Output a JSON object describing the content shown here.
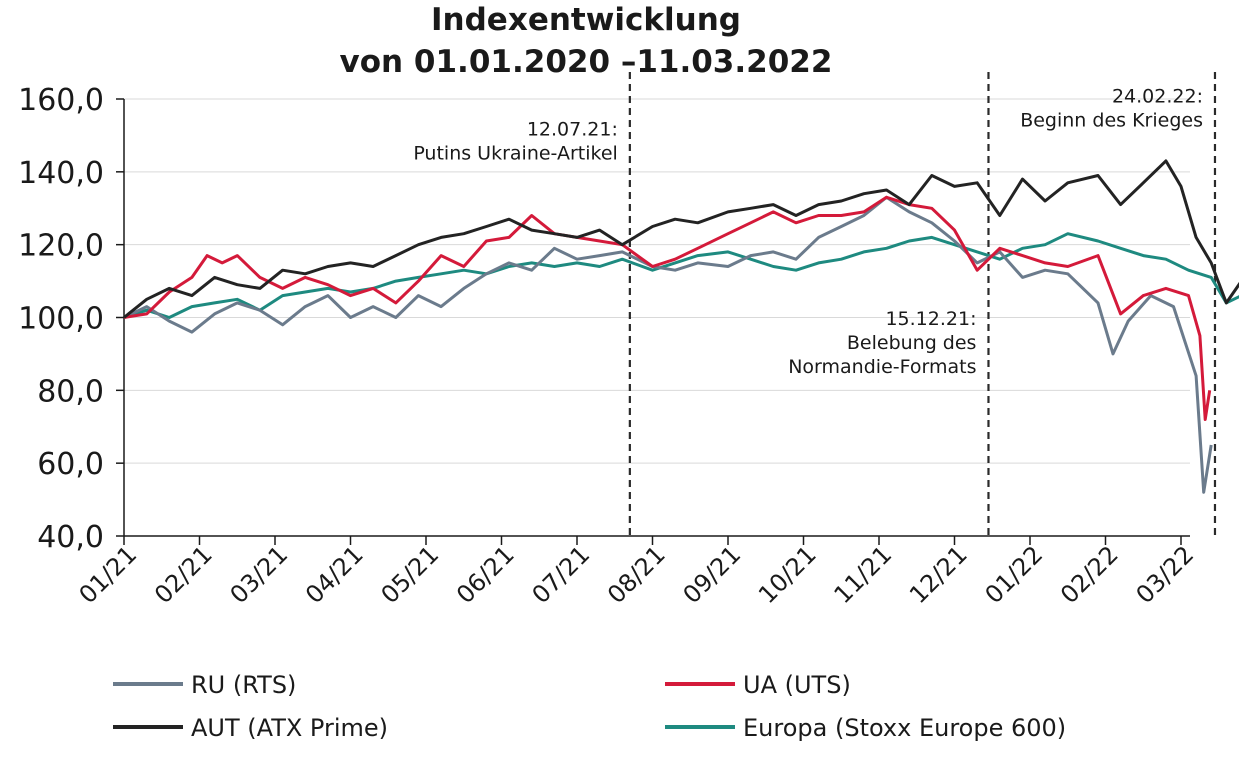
{
  "chart_data": {
    "type": "line",
    "title": "Indexentwicklung",
    "subtitle": "von 01.01.2020 –11.03.2022",
    "ylim": [
      40,
      160
    ],
    "yticks": [
      "160,0",
      "140,0",
      "120,0",
      "100,0",
      "80,0",
      "60,0",
      "40,0"
    ],
    "yvalues": [
      160,
      140,
      120,
      100,
      80,
      60,
      40
    ],
    "xticks": [
      "01/21",
      "02/21",
      "03/21",
      "04/21",
      "05/21",
      "06/21",
      "07/21",
      "08/21",
      "09/21",
      "10/21",
      "11/21",
      "12/21",
      "01/22",
      "02/22",
      "03/22"
    ],
    "grid": true,
    "legend": "bottom",
    "series": [
      {
        "name": "RU (RTS)",
        "color": "#6b7b8c",
        "values": [
          [
            0,
            100
          ],
          [
            0.3,
            103
          ],
          [
            0.6,
            99
          ],
          [
            0.9,
            96
          ],
          [
            1.2,
            101
          ],
          [
            1.5,
            104
          ],
          [
            1.8,
            102
          ],
          [
            2.1,
            98
          ],
          [
            2.4,
            103
          ],
          [
            2.7,
            106
          ],
          [
            3.0,
            100
          ],
          [
            3.3,
            103
          ],
          [
            3.6,
            100
          ],
          [
            3.9,
            106
          ],
          [
            4.2,
            103
          ],
          [
            4.5,
            108
          ],
          [
            4.8,
            112
          ],
          [
            5.1,
            115
          ],
          [
            5.4,
            113
          ],
          [
            5.7,
            119
          ],
          [
            6.0,
            116
          ],
          [
            6.3,
            117
          ],
          [
            6.6,
            118
          ],
          [
            7.0,
            114
          ],
          [
            7.3,
            113
          ],
          [
            7.6,
            115
          ],
          [
            8.0,
            114
          ],
          [
            8.3,
            117
          ],
          [
            8.6,
            118
          ],
          [
            8.9,
            116
          ],
          [
            9.2,
            122
          ],
          [
            9.5,
            125
          ],
          [
            9.8,
            128
          ],
          [
            10.1,
            133
          ],
          [
            10.4,
            129
          ],
          [
            10.7,
            126
          ],
          [
            11.0,
            121
          ],
          [
            11.3,
            115
          ],
          [
            11.6,
            118
          ],
          [
            11.9,
            111
          ],
          [
            12.2,
            113
          ],
          [
            12.5,
            112
          ],
          [
            12.9,
            104
          ],
          [
            13.1,
            90
          ],
          [
            13.3,
            99
          ],
          [
            13.6,
            106
          ],
          [
            13.9,
            103
          ],
          [
            14.2,
            84
          ],
          [
            14.3,
            52
          ],
          [
            14.4,
            65
          ]
        ]
      },
      {
        "name": "UA (UTS)",
        "color": "#d41a3a",
        "values": [
          [
            0,
            100
          ],
          [
            0.3,
            101
          ],
          [
            0.6,
            107
          ],
          [
            0.9,
            111
          ],
          [
            1.1,
            117
          ],
          [
            1.3,
            115
          ],
          [
            1.5,
            117
          ],
          [
            1.8,
            111
          ],
          [
            2.1,
            108
          ],
          [
            2.4,
            111
          ],
          [
            2.7,
            109
          ],
          [
            3.0,
            106
          ],
          [
            3.3,
            108
          ],
          [
            3.6,
            104
          ],
          [
            3.9,
            110
          ],
          [
            4.2,
            117
          ],
          [
            4.5,
            114
          ],
          [
            4.8,
            121
          ],
          [
            5.1,
            122
          ],
          [
            5.4,
            128
          ],
          [
            5.7,
            123
          ],
          [
            6.0,
            122
          ],
          [
            6.3,
            121
          ],
          [
            6.6,
            120
          ],
          [
            7.0,
            114
          ],
          [
            7.3,
            116
          ],
          [
            7.6,
            119
          ],
          [
            8.0,
            123
          ],
          [
            8.3,
            126
          ],
          [
            8.6,
            129
          ],
          [
            8.9,
            126
          ],
          [
            9.2,
            128
          ],
          [
            9.5,
            128
          ],
          [
            9.8,
            129
          ],
          [
            10.1,
            133
          ],
          [
            10.4,
            131
          ],
          [
            10.7,
            130
          ],
          [
            11.0,
            124
          ],
          [
            11.3,
            113
          ],
          [
            11.6,
            119
          ],
          [
            11.9,
            117
          ],
          [
            12.2,
            115
          ],
          [
            12.5,
            114
          ],
          [
            12.9,
            117
          ],
          [
            13.2,
            101
          ],
          [
            13.5,
            106
          ],
          [
            13.8,
            108
          ],
          [
            14.1,
            106
          ],
          [
            14.25,
            95
          ],
          [
            14.32,
            72
          ],
          [
            14.38,
            80
          ]
        ]
      },
      {
        "name": "AUT (ATX Prime)",
        "color": "#232323",
        "values": [
          [
            0,
            100
          ],
          [
            0.3,
            105
          ],
          [
            0.6,
            108
          ],
          [
            0.9,
            106
          ],
          [
            1.2,
            111
          ],
          [
            1.5,
            109
          ],
          [
            1.8,
            108
          ],
          [
            2.1,
            113
          ],
          [
            2.4,
            112
          ],
          [
            2.7,
            114
          ],
          [
            3.0,
            115
          ],
          [
            3.3,
            114
          ],
          [
            3.6,
            117
          ],
          [
            3.9,
            120
          ],
          [
            4.2,
            122
          ],
          [
            4.5,
            123
          ],
          [
            4.8,
            125
          ],
          [
            5.1,
            127
          ],
          [
            5.4,
            124
          ],
          [
            5.7,
            123
          ],
          [
            6.0,
            122
          ],
          [
            6.3,
            124
          ],
          [
            6.6,
            120
          ],
          [
            7.0,
            125
          ],
          [
            7.3,
            127
          ],
          [
            7.6,
            126
          ],
          [
            8.0,
            129
          ],
          [
            8.3,
            130
          ],
          [
            8.6,
            131
          ],
          [
            8.9,
            128
          ],
          [
            9.2,
            131
          ],
          [
            9.5,
            132
          ],
          [
            9.8,
            134
          ],
          [
            10.1,
            135
          ],
          [
            10.4,
            131
          ],
          [
            10.7,
            139
          ],
          [
            11.0,
            136
          ],
          [
            11.3,
            137
          ],
          [
            11.6,
            128
          ],
          [
            11.9,
            138
          ],
          [
            12.2,
            132
          ],
          [
            12.5,
            137
          ],
          [
            12.9,
            139
          ],
          [
            13.2,
            131
          ],
          [
            13.5,
            137
          ],
          [
            13.8,
            143
          ],
          [
            14.0,
            136
          ],
          [
            14.2,
            122
          ],
          [
            14.4,
            115
          ],
          [
            14.6,
            104
          ],
          [
            14.8,
            110
          ],
          [
            14.85,
            113
          ]
        ]
      },
      {
        "name": "Europa (Stoxx Europe 600)",
        "color": "#1e8a80",
        "values": [
          [
            0,
            100
          ],
          [
            0.3,
            102
          ],
          [
            0.6,
            100
          ],
          [
            0.9,
            103
          ],
          [
            1.2,
            104
          ],
          [
            1.5,
            105
          ],
          [
            1.8,
            102
          ],
          [
            2.1,
            106
          ],
          [
            2.4,
            107
          ],
          [
            2.7,
            108
          ],
          [
            3.0,
            107
          ],
          [
            3.3,
            108
          ],
          [
            3.6,
            110
          ],
          [
            3.9,
            111
          ],
          [
            4.2,
            112
          ],
          [
            4.5,
            113
          ],
          [
            4.8,
            112
          ],
          [
            5.1,
            114
          ],
          [
            5.4,
            115
          ],
          [
            5.7,
            114
          ],
          [
            6.0,
            115
          ],
          [
            6.3,
            114
          ],
          [
            6.6,
            116
          ],
          [
            7.0,
            113
          ],
          [
            7.3,
            115
          ],
          [
            7.6,
            117
          ],
          [
            8.0,
            118
          ],
          [
            8.3,
            116
          ],
          [
            8.6,
            114
          ],
          [
            8.9,
            113
          ],
          [
            9.2,
            115
          ],
          [
            9.5,
            116
          ],
          [
            9.8,
            118
          ],
          [
            10.1,
            119
          ],
          [
            10.4,
            121
          ],
          [
            10.7,
            122
          ],
          [
            11.0,
            120
          ],
          [
            11.3,
            118
          ],
          [
            11.6,
            116
          ],
          [
            11.9,
            119
          ],
          [
            12.2,
            120
          ],
          [
            12.5,
            123
          ],
          [
            12.9,
            121
          ],
          [
            13.2,
            119
          ],
          [
            13.5,
            117
          ],
          [
            13.8,
            116
          ],
          [
            14.1,
            113
          ],
          [
            14.4,
            111
          ],
          [
            14.6,
            104
          ],
          [
            14.8,
            106
          ],
          [
            14.85,
            107
          ]
        ]
      }
    ],
    "annotations": [
      {
        "x": 6.7,
        "lines": [
          "12.07.21:",
          "Putins Ukraine-Artikel"
        ],
        "label_y": 150,
        "align": "end"
      },
      {
        "x": 11.45,
        "lines": [
          "15.12.21:",
          "Belebung des",
          "Normandie-Formats"
        ],
        "label_y": 98,
        "align": "end"
      },
      {
        "x": 14.45,
        "lines": [
          "24.02.22:",
          "Beginn des Krieges"
        ],
        "label_y": 159,
        "align": "end"
      }
    ]
  }
}
